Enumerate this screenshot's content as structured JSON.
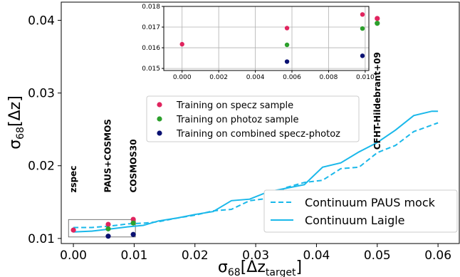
{
  "chart_data": [
    {
      "type": "line",
      "xlabel_base": "σ",
      "xlabel_sub": "68",
      "xlabel_arg": "[Δz",
      "xlabel_arg_sub": "target",
      "xlabel_close": "]",
      "ylabel_base": "σ",
      "ylabel_sub": "68",
      "ylabel_arg": "[Δz]",
      "xlim": [
        -0.002,
        0.0635
      ],
      "ylim": [
        0.0093,
        0.0425
      ],
      "xticks": [
        0.0,
        0.01,
        0.02,
        0.03,
        0.04,
        0.05,
        0.06
      ],
      "xtick_labels": [
        "0.00",
        "0.01",
        "0.02",
        "0.03",
        "0.04",
        "0.05",
        "0.06"
      ],
      "yticks": [
        0.01,
        0.02,
        0.03,
        0.04
      ],
      "ytick_labels": [
        "0.01",
        "0.02",
        "0.03",
        "0.04"
      ],
      "series": [
        {
          "name": "Continuum PAUS mock",
          "style": "dashed",
          "color": "#1ab8ea",
          "x": [
            0.0,
            0.003,
            0.006,
            0.009,
            0.0115,
            0.014,
            0.017,
            0.02,
            0.023,
            0.026,
            0.029,
            0.032,
            0.035,
            0.038,
            0.041,
            0.044,
            0.047,
            0.05,
            0.053,
            0.056,
            0.059,
            0.06
          ],
          "y": [
            0.0115,
            0.0115,
            0.0117,
            0.012,
            0.0121,
            0.0123,
            0.0128,
            0.0132,
            0.0138,
            0.014,
            0.0152,
            0.0155,
            0.017,
            0.0177,
            0.018,
            0.0196,
            0.0198,
            0.0218,
            0.0228,
            0.0247,
            0.0256,
            0.0259
          ]
        },
        {
          "name": "Continuum Laigle",
          "style": "solid",
          "color": "#1ab8ea",
          "x": [
            0.0,
            0.003,
            0.006,
            0.009,
            0.0115,
            0.014,
            0.017,
            0.02,
            0.023,
            0.026,
            0.029,
            0.032,
            0.035,
            0.038,
            0.041,
            0.044,
            0.047,
            0.05,
            0.053,
            0.056,
            0.059,
            0.06
          ],
          "y": [
            0.0109,
            0.011,
            0.0113,
            0.0116,
            0.0118,
            0.0124,
            0.0128,
            0.0133,
            0.0137,
            0.0152,
            0.0154,
            0.0164,
            0.0169,
            0.0174,
            0.0198,
            0.0204,
            0.0219,
            0.0232,
            0.0249,
            0.0269,
            0.0275,
            0.0275
          ]
        }
      ],
      "scatter_series": [
        {
          "name": "Training on specz sample",
          "color": "#e0245e",
          "x": [
            0.0,
            0.00573,
            0.00985,
            0.05
          ],
          "y": [
            0.01115,
            0.01194,
            0.01262,
            0.04025
          ]
        },
        {
          "name": "Training on photoz sample",
          "color": "#2ca02c",
          "x": [
            0.00573,
            0.00985,
            0.05
          ],
          "y": [
            0.01132,
            0.01212,
            0.03959
          ]
        },
        {
          "name": "Training on combined specz-photoz",
          "color": "#0a1172",
          "x": [
            0.00573,
            0.00985
          ],
          "y": [
            0.01031,
            0.01055
          ]
        }
      ],
      "annotations": [
        {
          "text": "zspec",
          "x": 0.0,
          "y": 0.0163
        },
        {
          "text": "PAUS+COSMOS",
          "x": 0.0057,
          "y": 0.0163
        },
        {
          "text": "COSMOS30",
          "x": 0.0099,
          "y": 0.0163
        },
        {
          "text": "CFHT-Hildebrant+09",
          "x": 0.05,
          "y": 0.0222
        }
      ],
      "grid": false,
      "scatter_legend_placement": "center",
      "line_legend_placement": "lower-right"
    },
    {
      "type": "scatter",
      "role": "inset zoom of low-x region",
      "xlim": [
        -0.001,
        0.0102
      ],
      "ylim": [
        0.0149,
        0.018
      ],
      "xticks": [
        0.0,
        0.002,
        0.004,
        0.006,
        0.008,
        0.01
      ],
      "xtick_labels": [
        "0.000",
        "0.002",
        "0.004",
        "0.006",
        "0.008",
        "0.010"
      ],
      "yticks": [
        0.015,
        0.016,
        0.017,
        0.018
      ],
      "ytick_labels": [
        "0.015",
        "0.016",
        "0.017",
        "0.018"
      ],
      "grid": true,
      "series": [
        {
          "name": "Training on specz sample",
          "color": "#e0245e",
          "x": [
            0.0,
            0.00573,
            0.00985
          ],
          "y": [
            0.01617,
            0.01695,
            0.01761
          ]
        },
        {
          "name": "Training on photoz sample",
          "color": "#2ca02c",
          "x": [
            0.00573,
            0.00985
          ],
          "y": [
            0.01614,
            0.01693
          ]
        },
        {
          "name": "Training on combined specz-photoz",
          "color": "#0a1172",
          "x": [
            0.00573,
            0.00985
          ],
          "y": [
            0.01533,
            0.01561
          ]
        }
      ]
    }
  ]
}
